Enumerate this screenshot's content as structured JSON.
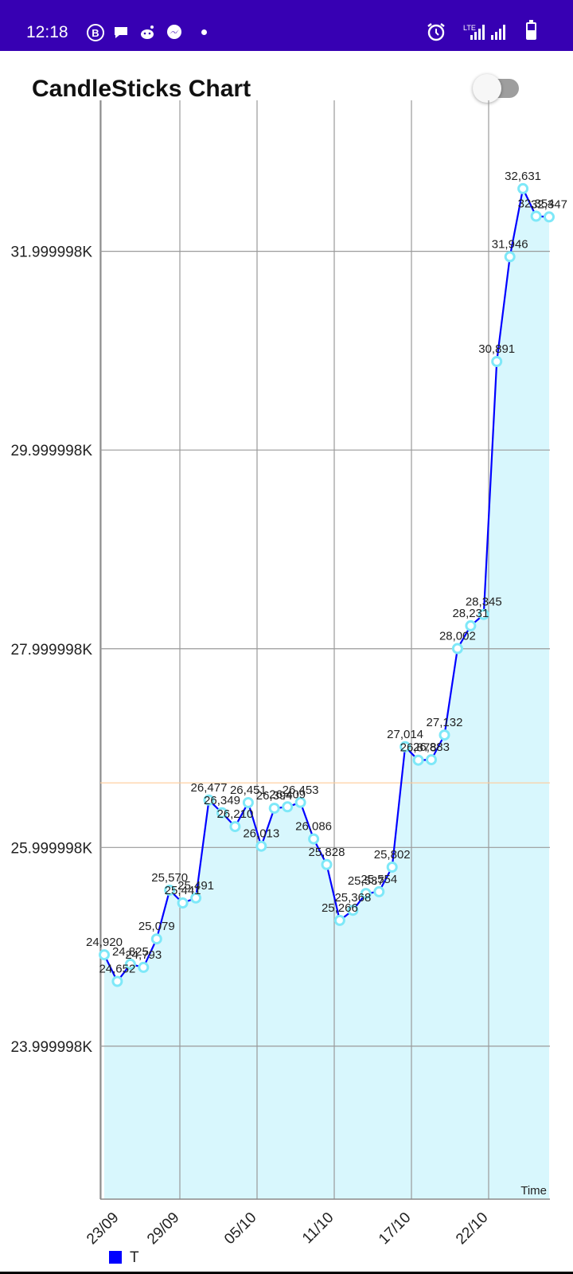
{
  "status_bar": {
    "time": "12:18",
    "icons": [
      "b-badge-icon",
      "chat-bubble-icon",
      "reddit-icon",
      "messenger-icon",
      "more-dot-icon",
      "alarm-icon",
      "lte-icon",
      "signal-icon",
      "signal-icon",
      "battery-icon"
    ],
    "lte_label": "LTE",
    "background": "#3700b3"
  },
  "header": {
    "title": "CandleSticks Chart",
    "toggle_on": false
  },
  "chart_data": {
    "type": "line",
    "title": "CandleSticks Chart",
    "xlabel": "Time",
    "ylabel": "",
    "x_tick_labels": [
      "23/09",
      "29/09",
      "05/10",
      "11/10",
      "17/10",
      "22/10"
    ],
    "y_tick_labels": [
      "23.999998K",
      "25.999998K",
      "27.999998K",
      "29.999998K",
      "31.999998K"
    ],
    "y_ticks": [
      23999.998,
      25999.998,
      27999.998,
      29999.998,
      31999.998
    ],
    "ylim": [
      22460,
      33520
    ],
    "limit_line": 26650,
    "grid": true,
    "fill": true,
    "legend": {
      "position": "bottom-left",
      "entries": [
        "T"
      ]
    },
    "series": [
      {
        "name": "T",
        "color": "#0000ff",
        "marker_color": "#7ee8f8",
        "fill_color": "#d8f7fd",
        "values": [
          24920,
          24652,
          24825,
          24793,
          25079,
          25570,
          25441,
          25491,
          26477,
          26349,
          26210,
          26451,
          26013,
          26394,
          26409,
          26453,
          26086,
          25828,
          25266,
          25368,
          25537,
          25554,
          25802,
          27014,
          26878,
          26883,
          27132,
          28002,
          28231,
          28345,
          30891,
          31946,
          32631,
          32354,
          32347
        ],
        "labels": [
          "24,920",
          "24,652",
          "24,825",
          "24,793",
          "25,079",
          "25,570",
          "25,441",
          "25,491",
          "26,477",
          "26,349",
          "26,210",
          "26,451",
          "26,013",
          "26,394",
          "26,409",
          "26,453",
          "26,086",
          "25,828",
          "25,266",
          "25,368",
          "25,537",
          "25,554",
          "25,802",
          "27,014",
          "26,878",
          "26,883",
          "27,132",
          "28,002",
          "28,231",
          "28,345",
          "30,891",
          "31,946",
          "32,631",
          "32,354",
          "32,347"
        ]
      }
    ]
  }
}
